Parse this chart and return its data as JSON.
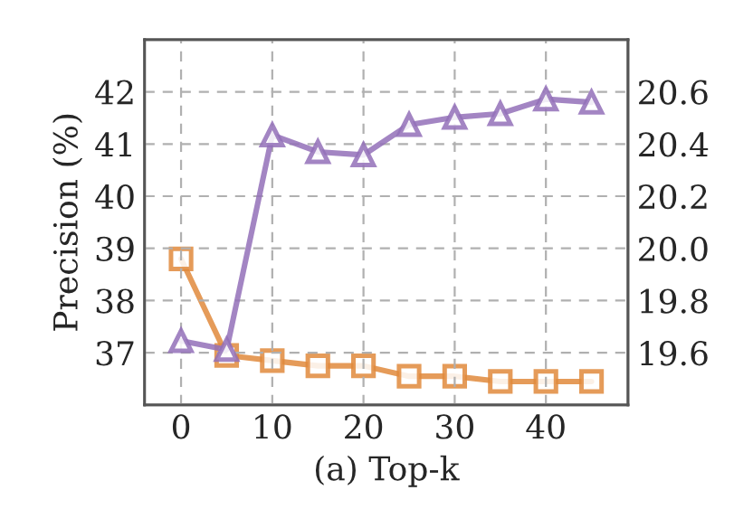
{
  "chart_data": {
    "type": "line",
    "xlabel": "(a) Top-k",
    "ylabel": "Precision (%)",
    "x": [
      0,
      5,
      10,
      15,
      20,
      25,
      30,
      35,
      40,
      45
    ],
    "series": [
      {
        "color": "#9370b8",
        "marker": "triangle",
        "values": [
          37.23,
          37.06,
          41.17,
          40.85,
          40.79,
          41.37,
          41.51,
          41.58,
          41.86,
          41.8
        ]
      },
      {
        "color": "#e08a3c",
        "marker": "square",
        "axis": "y2",
        "values": [
          19.96,
          19.59,
          19.57,
          19.55,
          19.55,
          19.51,
          19.51,
          19.49,
          19.49,
          19.49
        ]
      }
    ],
    "xlim": [
      -4,
      49
    ],
    "xticks": [
      0,
      10,
      20,
      30,
      40
    ],
    "ylim": [
      36,
      43
    ],
    "yticks": [
      37,
      38,
      39,
      40,
      41,
      42
    ],
    "y2lim": [
      19.4,
      20.8
    ],
    "y2ticks": [
      19.6,
      19.8,
      {
        "value": 20,
        "label": "20.0"
      },
      20.2,
      20.4,
      20.6
    ],
    "grid": true,
    "line_style": "solid"
  }
}
